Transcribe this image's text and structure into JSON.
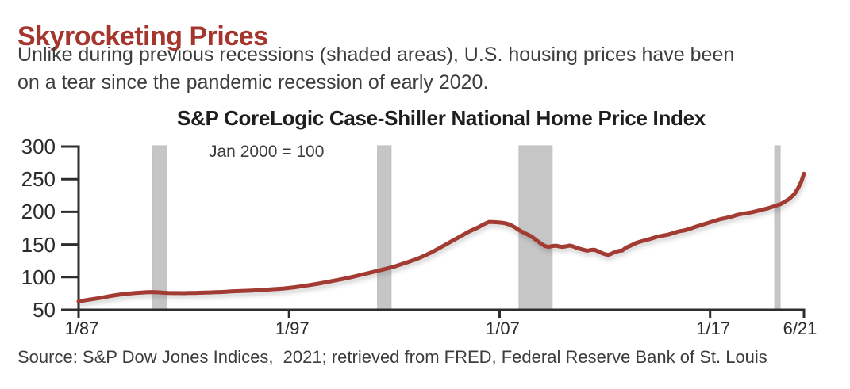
{
  "page": {
    "title": "Skyrocketing Prices",
    "subtitle": "Unlike during previous recessions (shaded areas), U.S. housing prices have been\non a tear since the pandemic recession of early 2020.",
    "source": "Source: S&P Dow Jones Indices,  2021; retrieved from FRED, Federal Reserve Bank of St. Louis"
  },
  "colors": {
    "title_red": "#a5362e",
    "line_red": "#a23a31",
    "recession_gray": "#c6c6c6",
    "recession_edge_gray": "#bdbdbd",
    "axis_dark": "#2d2d2d",
    "text_gray": "#3d3d3d"
  },
  "chart_data": {
    "type": "line",
    "title": "S&P CoreLogic Case-Shiller National Home Price Index",
    "note": "Jan 2000 = 100",
    "xlabel": "",
    "ylabel": "",
    "x_unit": "decimal_year",
    "xlim": [
      1987.0,
      2021.46
    ],
    "ylim": [
      50,
      300
    ],
    "grid": false,
    "legend": "none",
    "y_ticks": [
      50,
      100,
      150,
      200,
      250,
      300
    ],
    "x_ticks": [
      {
        "label": "1/87",
        "year": 1987.0
      },
      {
        "label": "1/97",
        "year": 1997.0
      },
      {
        "label": "1/07",
        "year": 2007.0
      },
      {
        "label": "1/17",
        "year": 2017.0
      },
      {
        "label": "6/21",
        "year": 2021.46
      }
    ],
    "recessions": [
      {
        "name": "1990-91 recession",
        "start": 1990.5,
        "end": 1991.2
      },
      {
        "name": "2001 recession",
        "start": 2001.2,
        "end": 2001.85
      },
      {
        "name": "2008-09 recession",
        "start": 2007.92,
        "end": 2009.5
      },
      {
        "name": "2020 recession",
        "start": 2020.07,
        "end": 2020.33
      }
    ],
    "series": [
      {
        "name": "Case-Shiller National Home Price Index",
        "points": [
          [
            1987.0,
            63
          ],
          [
            1987.25,
            64.2
          ],
          [
            1987.5,
            65.5
          ],
          [
            1987.75,
            66.8
          ],
          [
            1988.0,
            68
          ],
          [
            1988.25,
            69.5
          ],
          [
            1988.5,
            71
          ],
          [
            1988.75,
            72.3
          ],
          [
            1989.0,
            73.5
          ],
          [
            1989.25,
            74.5
          ],
          [
            1989.5,
            75.3
          ],
          [
            1989.75,
            76
          ],
          [
            1990.0,
            76.5
          ],
          [
            1990.25,
            77
          ],
          [
            1990.5,
            77.2
          ],
          [
            1990.75,
            76.8
          ],
          [
            1991.0,
            76.2
          ],
          [
            1991.25,
            75.7
          ],
          [
            1991.5,
            75.6
          ],
          [
            1991.75,
            75.6
          ],
          [
            1992.0,
            75.5
          ],
          [
            1992.25,
            75.7
          ],
          [
            1992.5,
            75.9
          ],
          [
            1992.75,
            76.1
          ],
          [
            1993.0,
            76.3
          ],
          [
            1993.25,
            76.6
          ],
          [
            1993.5,
            76.9
          ],
          [
            1993.75,
            77.2
          ],
          [
            1994.0,
            77.6
          ],
          [
            1994.25,
            78.1
          ],
          [
            1994.5,
            78.5
          ],
          [
            1994.75,
            78.8
          ],
          [
            1995.0,
            79.1
          ],
          [
            1995.25,
            79.5
          ],
          [
            1995.5,
            80
          ],
          [
            1995.75,
            80.5
          ],
          [
            1996.0,
            81
          ],
          [
            1996.25,
            81.5
          ],
          [
            1996.5,
            82
          ],
          [
            1996.75,
            82.7
          ],
          [
            1997.0,
            83.5
          ],
          [
            1997.25,
            84.5
          ],
          [
            1997.5,
            85.6
          ],
          [
            1997.75,
            86.8
          ],
          [
            1998.0,
            88
          ],
          [
            1998.25,
            89.3
          ],
          [
            1998.5,
            90.7
          ],
          [
            1998.75,
            92.2
          ],
          [
            1999.0,
            93.8
          ],
          [
            1999.25,
            95.3
          ],
          [
            1999.5,
            96.8
          ],
          [
            1999.75,
            98.4
          ],
          [
            2000.0,
            100.2
          ],
          [
            2000.25,
            102.2
          ],
          [
            2000.5,
            104.2
          ],
          [
            2000.75,
            106.1
          ],
          [
            2001.0,
            108
          ],
          [
            2001.25,
            110
          ],
          [
            2001.5,
            112
          ],
          [
            2001.75,
            114
          ],
          [
            2002.0,
            116.2
          ],
          [
            2002.25,
            118.8
          ],
          [
            2002.5,
            121.5
          ],
          [
            2002.75,
            124.2
          ],
          [
            2003.0,
            127
          ],
          [
            2003.25,
            130.2
          ],
          [
            2003.5,
            133.8
          ],
          [
            2003.75,
            137.8
          ],
          [
            2004.0,
            142
          ],
          [
            2004.25,
            146.5
          ],
          [
            2004.5,
            151
          ],
          [
            2004.75,
            155.5
          ],
          [
            2005.0,
            160
          ],
          [
            2005.25,
            164.5
          ],
          [
            2005.5,
            169
          ],
          [
            2005.75,
            172.8
          ],
          [
            2006.0,
            176.5
          ],
          [
            2006.25,
            181
          ],
          [
            2006.5,
            184.6
          ],
          [
            2006.75,
            184.2
          ],
          [
            2007.0,
            183.6
          ],
          [
            2007.25,
            182.6
          ],
          [
            2007.5,
            180.2
          ],
          [
            2007.75,
            175.8
          ],
          [
            2008.0,
            170.5
          ],
          [
            2008.25,
            166.5
          ],
          [
            2008.5,
            162.5
          ],
          [
            2008.75,
            156.5
          ],
          [
            2009.0,
            150.5
          ],
          [
            2009.17,
            147.5
          ],
          [
            2009.33,
            146.2
          ],
          [
            2009.5,
            147.6
          ],
          [
            2009.67,
            148.2
          ],
          [
            2009.83,
            147
          ],
          [
            2010.0,
            146.3
          ],
          [
            2010.17,
            147.2
          ],
          [
            2010.33,
            148.4
          ],
          [
            2010.5,
            147
          ],
          [
            2010.67,
            144.8
          ],
          [
            2010.83,
            143.2
          ],
          [
            2011.0,
            141.8
          ],
          [
            2011.17,
            140.4
          ],
          [
            2011.33,
            141.6
          ],
          [
            2011.5,
            142
          ],
          [
            2011.67,
            139.8
          ],
          [
            2011.83,
            137.2
          ],
          [
            2012.0,
            135.2
          ],
          [
            2012.17,
            134
          ],
          [
            2012.33,
            136.2
          ],
          [
            2012.5,
            138.6
          ],
          [
            2012.67,
            140.2
          ],
          [
            2012.83,
            140.8
          ],
          [
            2013.0,
            145
          ],
          [
            2013.25,
            148.5
          ],
          [
            2013.5,
            152.5
          ],
          [
            2013.75,
            155
          ],
          [
            2014.0,
            157
          ],
          [
            2014.25,
            159.5
          ],
          [
            2014.5,
            162
          ],
          [
            2014.75,
            163.5
          ],
          [
            2015.0,
            165
          ],
          [
            2015.25,
            167.5
          ],
          [
            2015.5,
            170
          ],
          [
            2015.75,
            171.5
          ],
          [
            2016.0,
            173.5
          ],
          [
            2016.25,
            176.5
          ],
          [
            2016.5,
            179
          ],
          [
            2016.75,
            181.5
          ],
          [
            2017.0,
            184
          ],
          [
            2017.25,
            186.5
          ],
          [
            2017.5,
            189
          ],
          [
            2017.75,
            190.5
          ],
          [
            2018.0,
            192.5
          ],
          [
            2018.25,
            195
          ],
          [
            2018.5,
            197
          ],
          [
            2018.75,
            198
          ],
          [
            2019.0,
            199.5
          ],
          [
            2019.25,
            201.5
          ],
          [
            2019.5,
            203.5
          ],
          [
            2019.75,
            205.5
          ],
          [
            2020.0,
            208
          ],
          [
            2020.17,
            210
          ],
          [
            2020.33,
            211.5
          ],
          [
            2020.5,
            214.5
          ],
          [
            2020.75,
            219.5
          ],
          [
            2021.0,
            227
          ],
          [
            2021.17,
            235.5
          ],
          [
            2021.33,
            246
          ],
          [
            2021.46,
            258.5
          ]
        ]
      }
    ]
  }
}
